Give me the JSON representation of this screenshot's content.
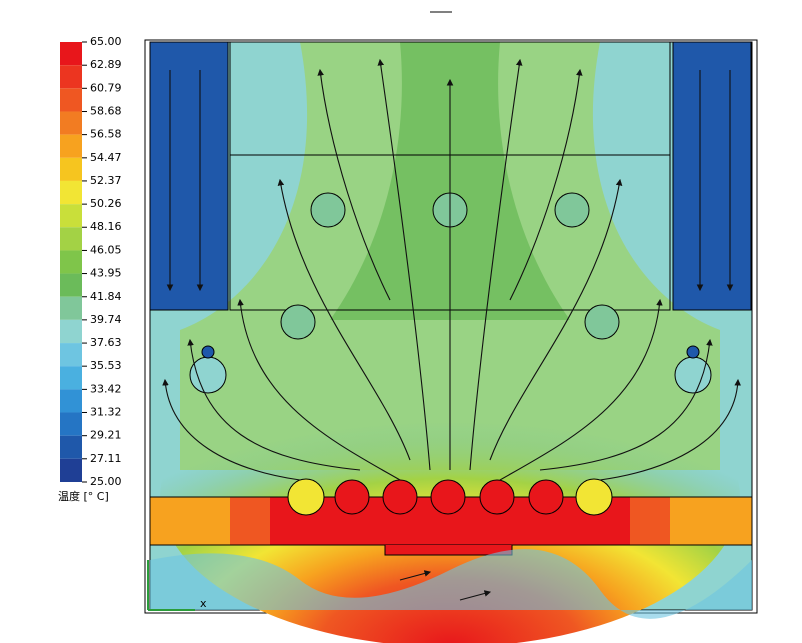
{
  "colorbar": {
    "title": "温度 [° C]",
    "ticks": [
      {
        "value": 65,
        "label": "65.00"
      },
      {
        "value": 62.89,
        "label": "62.89"
      },
      {
        "value": 60.79,
        "label": "60.79"
      },
      {
        "value": 58.68,
        "label": "58.68"
      },
      {
        "value": 56.58,
        "label": "56.58"
      },
      {
        "value": 54.47,
        "label": "54.47"
      },
      {
        "value": 52.37,
        "label": "52.37"
      },
      {
        "value": 50.26,
        "label": "50.26"
      },
      {
        "value": 48.16,
        "label": "48.16"
      },
      {
        "value": 46.05,
        "label": "46.05"
      },
      {
        "value": 43.95,
        "label": "43.95"
      },
      {
        "value": 41.84,
        "label": "41.84"
      },
      {
        "value": 39.74,
        "label": "39.74"
      },
      {
        "value": 37.63,
        "label": "37.63"
      },
      {
        "value": 35.53,
        "label": "35.53"
      },
      {
        "value": 33.42,
        "label": "33.42"
      },
      {
        "value": 31.32,
        "label": "31.32"
      },
      {
        "value": 29.21,
        "label": "29.21"
      },
      {
        "value": 27.11,
        "label": "27.11"
      },
      {
        "value": 25,
        "label": "25.00"
      }
    ],
    "colors": [
      "#e8161b",
      "#ec3520",
      "#ef5722",
      "#f27c22",
      "#f7a21f",
      "#f6c51f",
      "#f2e534",
      "#c9df3a",
      "#a3d245",
      "#7fc54a",
      "#6bbb5a",
      "#80c79a",
      "#8fd4d0",
      "#6ec5e1",
      "#4ab0e0",
      "#3192d6",
      "#2575c4",
      "#1f58aa",
      "#1f3f95"
    ]
  },
  "triad": {
    "x_label": "x"
  }
}
